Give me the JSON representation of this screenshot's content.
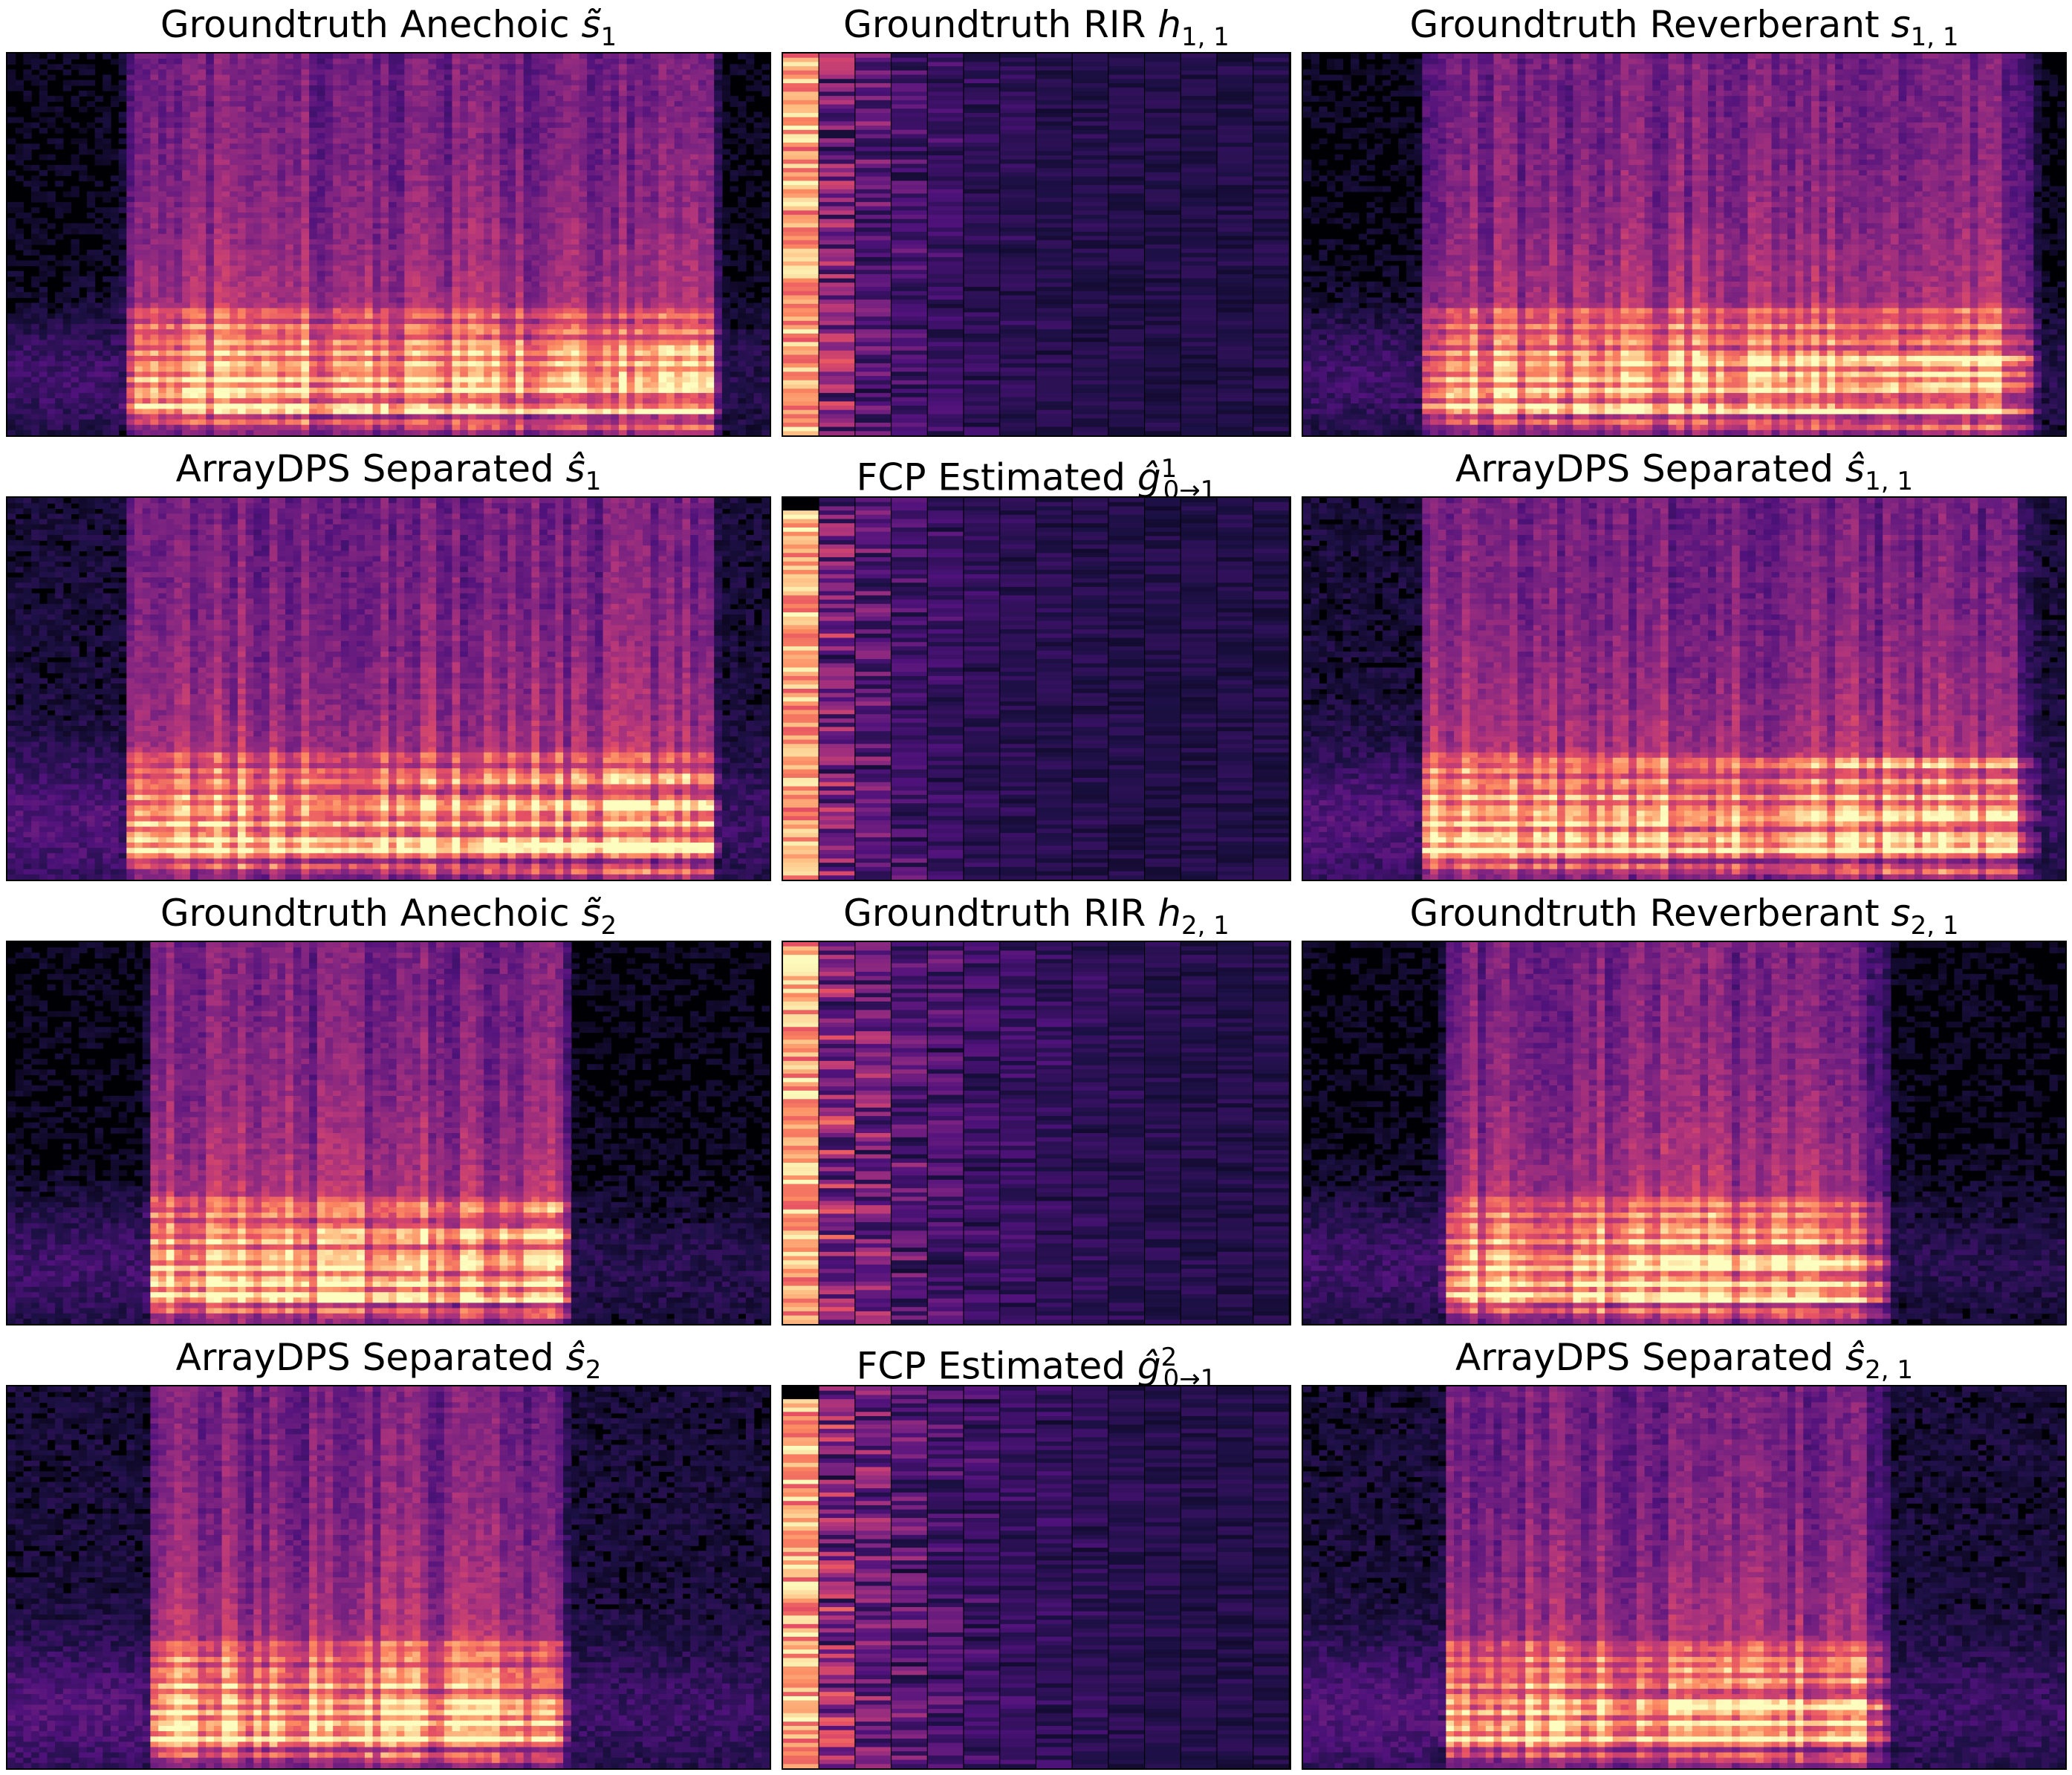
{
  "chart_data": {
    "type": "heatmap",
    "colormap": "magma",
    "axes_visible": false,
    "panels": [
      {
        "row": 0,
        "col": 0,
        "kind": "speech",
        "speaker": 1,
        "variant": "anechoic-gt",
        "title_text": "Groundtruth Anechoic ",
        "symbol": "s̃",
        "sub": "1",
        "sup": ""
      },
      {
        "row": 0,
        "col": 1,
        "kind": "rir",
        "speaker": 1,
        "variant": "rir-gt",
        "title_text": "Groundtruth RIR ",
        "symbol": "h",
        "sub": "1, 1",
        "sup": ""
      },
      {
        "row": 0,
        "col": 2,
        "kind": "speech",
        "speaker": 1,
        "variant": "reverb-gt",
        "title_text": "Groundtruth Reverberant ",
        "symbol": "s",
        "sub": "1, 1",
        "sup": ""
      },
      {
        "row": 1,
        "col": 0,
        "kind": "speech",
        "speaker": 1,
        "variant": "anechoic-est",
        "title_text": "ArrayDPS Separated ",
        "symbol": "ŝ",
        "sub": "1",
        "sup": ""
      },
      {
        "row": 1,
        "col": 1,
        "kind": "rir",
        "speaker": 1,
        "variant": "rir-est",
        "title_text": "FCP Estimated ",
        "symbol": "ĝ",
        "sub": "0→1",
        "sup": "1"
      },
      {
        "row": 1,
        "col": 2,
        "kind": "speech",
        "speaker": 1,
        "variant": "reverb-est",
        "title_text": "ArrayDPS Separated ",
        "symbol": "ŝ",
        "sub": "1, 1",
        "sup": ""
      },
      {
        "row": 2,
        "col": 0,
        "kind": "speech",
        "speaker": 2,
        "variant": "anechoic-gt",
        "title_text": "Groundtruth Anechoic ",
        "symbol": "s̃",
        "sub": "2",
        "sup": ""
      },
      {
        "row": 2,
        "col": 1,
        "kind": "rir",
        "speaker": 2,
        "variant": "rir-gt",
        "title_text": "Groundtruth RIR ",
        "symbol": "h",
        "sub": "2, 1",
        "sup": ""
      },
      {
        "row": 2,
        "col": 2,
        "kind": "speech",
        "speaker": 2,
        "variant": "reverb-gt",
        "title_text": "Groundtruth Reverberant ",
        "symbol": "s",
        "sub": "2, 1",
        "sup": ""
      },
      {
        "row": 3,
        "col": 0,
        "kind": "speech",
        "speaker": 2,
        "variant": "anechoic-est",
        "title_text": "ArrayDPS Separated ",
        "symbol": "ŝ",
        "sub": "2",
        "sup": ""
      },
      {
        "row": 3,
        "col": 1,
        "kind": "rir",
        "speaker": 2,
        "variant": "rir-est",
        "title_text": "FCP Estimated ",
        "symbol": "ĝ",
        "sub": "0→1",
        "sup": "2"
      },
      {
        "row": 3,
        "col": 2,
        "kind": "speech",
        "speaker": 2,
        "variant": "reverb-est",
        "title_text": "ArrayDPS Separated ",
        "symbol": "ŝ",
        "sub": "2, 1",
        "sup": ""
      }
    ]
  }
}
